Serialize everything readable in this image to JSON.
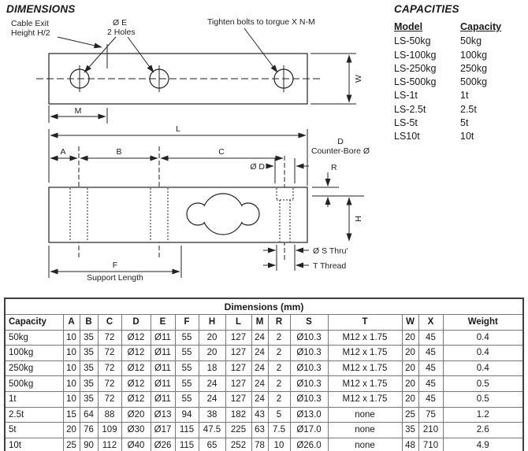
{
  "dimensions_section": {
    "title": "DIMENSIONS",
    "labels": {
      "cable_exit_1": "Cable Exit",
      "cable_exit_2": "Height H/2",
      "hole_dia_1": "Ø E",
      "hole_dia_2": "2 Holes",
      "tighten_note": "Tighten bolts to torgue X N-M",
      "w_dim": "W",
      "m_dim": "M",
      "l_dim": "L",
      "a_dim": "A",
      "b_dim": "B",
      "c_dim": "C",
      "od_dim": "Ø D",
      "counterbore_1": "D",
      "counterbore_2": "Counter-Bore Ø",
      "r_dim": "R",
      "h_dim": "H",
      "f_dim": "F",
      "f_sub": "Support Length",
      "s_thru": "Ø S Thru'",
      "t_thread": "T Thread"
    }
  },
  "capacities_section": {
    "title": "CAPACITIES",
    "col_model": "Model",
    "col_capacity": "Capacity",
    "rows": [
      [
        "LS-50kg",
        "50kg"
      ],
      [
        "LS-100kg",
        "100kg"
      ],
      [
        "LS-250kg",
        "250kg"
      ],
      [
        "LS-500kg",
        "500kg"
      ],
      [
        "LS-1t",
        "1t"
      ],
      [
        "LS-2.5t",
        "2.5t"
      ],
      [
        "LS-5t",
        "5t"
      ],
      [
        "LS10t",
        "10t"
      ]
    ]
  },
  "dimensions_table": {
    "title": "Dimensions (mm)",
    "headers": [
      "Capacity",
      "A",
      "B",
      "C",
      "D",
      "E",
      "F",
      "H",
      "L",
      "M",
      "R",
      "S",
      "T",
      "W",
      "X",
      "Weight"
    ],
    "rows": [
      [
        "50kg",
        "10",
        "35",
        "72",
        "Ø12",
        "Ø11",
        "55",
        "20",
        "127",
        "24",
        "2",
        "Ø10.3",
        "M12 x 1.75",
        "20",
        "45",
        "0.4"
      ],
      [
        "100kg",
        "10",
        "35",
        "72",
        "Ø12",
        "Ø11",
        "55",
        "20",
        "127",
        "24",
        "2",
        "Ø10.3",
        "M12 x 1.75",
        "20",
        "45",
        "0.4"
      ],
      [
        "250kg",
        "10",
        "35",
        "72",
        "Ø12",
        "Ø11",
        "55",
        "18",
        "127",
        "24",
        "2",
        "Ø10.3",
        "M12 x 1.75",
        "20",
        "45",
        "0.4"
      ],
      [
        "500kg",
        "10",
        "35",
        "72",
        "Ø12",
        "Ø11",
        "55",
        "24",
        "127",
        "24",
        "2",
        "Ø10.3",
        "M12 x 1.75",
        "20",
        "45",
        "0.5"
      ],
      [
        "1t",
        "10",
        "35",
        "72",
        "Ø12",
        "Ø11",
        "55",
        "24",
        "127",
        "24",
        "2",
        "Ø10.3",
        "M12 x 1.75",
        "20",
        "45",
        "0.5"
      ],
      [
        "2.5t",
        "15",
        "64",
        "88",
        "Ø20",
        "Ø13",
        "94",
        "38",
        "182",
        "43",
        "5",
        "Ø13.0",
        "none",
        "25",
        "75",
        "1.2"
      ],
      [
        "5t",
        "20",
        "76",
        "109",
        "Ø30",
        "Ø17",
        "115",
        "47.5",
        "225",
        "63",
        "7.5",
        "Ø17.0",
        "none",
        "35",
        "210",
        "2.6"
      ],
      [
        "10t",
        "25",
        "90",
        "112",
        "Ø40",
        "Ø26",
        "115",
        "65",
        "252",
        "78",
        "10",
        "Ø26.0",
        "none",
        "48",
        "710",
        "4.9"
      ]
    ]
  }
}
